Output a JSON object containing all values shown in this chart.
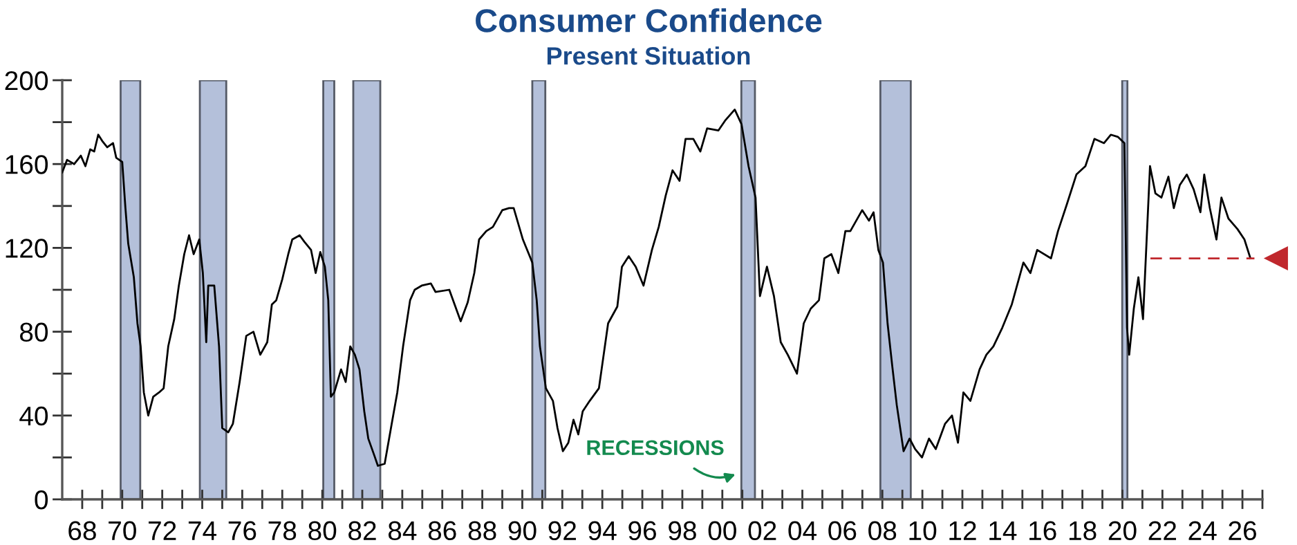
{
  "chart_data": {
    "type": "line",
    "title": "Consumer Confidence",
    "subtitle": "Present Situation",
    "xlim": [
      1967,
      2027
    ],
    "ylim": [
      0,
      200
    ],
    "yticks": [
      0,
      {
        "value": 20,
        "label": null
      },
      40,
      {
        "value": 60,
        "label": null
      },
      80,
      {
        "value": 100,
        "label": null
      },
      120,
      {
        "value": 140,
        "label": null
      },
      160,
      {
        "value": 180,
        "label": null
      },
      200
    ],
    "xticks": [
      {
        "value": 1968,
        "label": "68"
      },
      {
        "value": 1969,
        "label": null
      },
      {
        "value": 1970,
        "label": "70"
      },
      {
        "value": 1971,
        "label": null
      },
      {
        "value": 1972,
        "label": "72"
      },
      {
        "value": 1973,
        "label": null
      },
      {
        "value": 1974,
        "label": "74"
      },
      {
        "value": 1975,
        "label": null
      },
      {
        "value": 1976,
        "label": "76"
      },
      {
        "value": 1977,
        "label": null
      },
      {
        "value": 1978,
        "label": "78"
      },
      {
        "value": 1979,
        "label": null
      },
      {
        "value": 1980,
        "label": "80"
      },
      {
        "value": 1981,
        "label": null
      },
      {
        "value": 1982,
        "label": "82"
      },
      {
        "value": 1983,
        "label": null
      },
      {
        "value": 1984,
        "label": "84"
      },
      {
        "value": 1985,
        "label": null
      },
      {
        "value": 1986,
        "label": "86"
      },
      {
        "value": 1987,
        "label": null
      },
      {
        "value": 1988,
        "label": "88"
      },
      {
        "value": 1989,
        "label": null
      },
      {
        "value": 1990,
        "label": "90"
      },
      {
        "value": 1991,
        "label": null
      },
      {
        "value": 1992,
        "label": "92"
      },
      {
        "value": 1993,
        "label": null
      },
      {
        "value": 1994,
        "label": "94"
      },
      {
        "value": 1995,
        "label": null
      },
      {
        "value": 1996,
        "label": "96"
      },
      {
        "value": 1997,
        "label": null
      },
      {
        "value": 1998,
        "label": "98"
      },
      {
        "value": 1999,
        "label": null
      },
      {
        "value": 2000,
        "label": "00"
      },
      {
        "value": 2001,
        "label": null
      },
      {
        "value": 2002,
        "label": "02"
      },
      {
        "value": 2003,
        "label": null
      },
      {
        "value": 2004,
        "label": "04"
      },
      {
        "value": 2005,
        "label": null
      },
      {
        "value": 2006,
        "label": "06"
      },
      {
        "value": 2007,
        "label": null
      },
      {
        "value": 2008,
        "label": "08"
      },
      {
        "value": 2009,
        "label": null
      },
      {
        "value": 2010,
        "label": "10"
      },
      {
        "value": 2011,
        "label": null
      },
      {
        "value": 2012,
        "label": "12"
      },
      {
        "value": 2013,
        "label": null
      },
      {
        "value": 2014,
        "label": "14"
      },
      {
        "value": 2015,
        "label": null
      },
      {
        "value": 2016,
        "label": "16"
      },
      {
        "value": 2017,
        "label": null
      },
      {
        "value": 2018,
        "label": "18"
      },
      {
        "value": 2019,
        "label": null
      },
      {
        "value": 2020,
        "label": "20"
      },
      {
        "value": 2021,
        "label": null
      },
      {
        "value": 2022,
        "label": "22"
      },
      {
        "value": 2023,
        "label": null
      },
      {
        "value": 2024,
        "label": "24"
      },
      {
        "value": 2025,
        "label": null
      },
      {
        "value": 2026,
        "label": "26"
      },
      {
        "value": 2027,
        "label": null
      }
    ],
    "grid": false,
    "marker": "none",
    "line_style": "solid",
    "series": [
      {
        "color": "#000000",
        "x": [
          1967.0,
          1967.24,
          1967.6,
          1967.93,
          1968.16,
          1968.4,
          1968.6,
          1968.8,
          1969.0,
          1969.25,
          1969.54,
          1969.7,
          1970.0,
          1970.16,
          1970.3,
          1970.58,
          1970.76,
          1970.92,
          1971.08,
          1971.3,
          1971.55,
          1971.84,
          1972.07,
          1972.3,
          1972.6,
          1972.83,
          1973.1,
          1973.34,
          1973.57,
          1973.85,
          1974.03,
          1974.2,
          1974.3,
          1974.6,
          1974.84,
          1975.0,
          1975.3,
          1975.53,
          1975.87,
          1976.2,
          1976.56,
          1976.9,
          1977.25,
          1977.48,
          1977.7,
          1978.0,
          1978.3,
          1978.5,
          1978.87,
          1979.1,
          1979.44,
          1979.67,
          1979.9,
          1980.13,
          1980.3,
          1980.43,
          1980.6,
          1980.94,
          1981.17,
          1981.4,
          1981.63,
          1981.86,
          1982.1,
          1982.3,
          1982.6,
          1982.78,
          1983.12,
          1983.47,
          1983.75,
          1984.04,
          1984.39,
          1984.62,
          1984.97,
          1985.43,
          1985.66,
          1986.35,
          1986.92,
          1987.27,
          1987.6,
          1987.84,
          1988.2,
          1988.53,
          1989.0,
          1989.34,
          1989.57,
          1990.03,
          1990.5,
          1990.72,
          1990.88,
          1991.18,
          1991.53,
          1991.76,
          1992.03,
          1992.3,
          1992.56,
          1992.8,
          1993.02,
          1993.37,
          1993.83,
          1994.29,
          1994.75,
          1994.98,
          1995.32,
          1995.67,
          1996.06,
          1996.48,
          1996.82,
          1997.17,
          1997.51,
          1997.86,
          1998.16,
          1998.55,
          1998.9,
          1999.24,
          1999.8,
          2000.16,
          2000.62,
          2000.96,
          2001.31,
          2001.66,
          2001.88,
          2002.23,
          2002.58,
          2002.92,
          2003.27,
          2003.73,
          2004.07,
          2004.42,
          2004.83,
          2005.1,
          2005.45,
          2005.8,
          2006.15,
          2006.4,
          2006.99,
          2007.33,
          2007.56,
          2007.8,
          2008.03,
          2008.26,
          2008.49,
          2008.72,
          2009.06,
          2009.36,
          2009.64,
          2009.98,
          2010.33,
          2010.67,
          2011.13,
          2011.48,
          2011.78,
          2012.05,
          2012.4,
          2012.86,
          2013.2,
          2013.55,
          2014.0,
          2014.47,
          2015.05,
          2015.4,
          2015.74,
          2016.43,
          2016.78,
          2017.23,
          2017.7,
          2018.15,
          2018.6,
          2019.08,
          2019.42,
          2019.77,
          2020.1,
          2020.23,
          2020.34,
          2020.57,
          2020.8,
          2021.03,
          2021.38,
          2021.65,
          2021.95,
          2022.3,
          2022.57,
          2022.87,
          2023.22,
          2023.56,
          2023.9,
          2024.09,
          2024.37,
          2024.7,
          2024.95,
          2025.3,
          2025.75,
          2026.1,
          2026.4
        ],
        "values": [
          156,
          162,
          160,
          164,
          159,
          167,
          166,
          174,
          171,
          168,
          170,
          163,
          161,
          139,
          122,
          106,
          84,
          73,
          51,
          40,
          49,
          51,
          53,
          73,
          86,
          102,
          117,
          126,
          117,
          124,
          108,
          75,
          102,
          102,
          73,
          34,
          32,
          36,
          56,
          78,
          80,
          69,
          75,
          93,
          95,
          105,
          117,
          124,
          126,
          123,
          119,
          108,
          118,
          111,
          95,
          49,
          51,
          62,
          56,
          73,
          69,
          62,
          42,
          29,
          21,
          16,
          17,
          36,
          51,
          73,
          95,
          100,
          102,
          103,
          99,
          100,
          85,
          94,
          108,
          124,
          128,
          130,
          138,
          139,
          139,
          124,
          113,
          95,
          73,
          53,
          47,
          34,
          23,
          27,
          38,
          31,
          42,
          47,
          53,
          84,
          92,
          111,
          116,
          111,
          102,
          119,
          130,
          145,
          157,
          152,
          172,
          172,
          166,
          177,
          176,
          181,
          186,
          179,
          159,
          144,
          97,
          111,
          97,
          75,
          69,
          60,
          84,
          91,
          95,
          115,
          117,
          108,
          128,
          128,
          138,
          133,
          137,
          119,
          113,
          84,
          64,
          45,
          23,
          29,
          24,
          20,
          29,
          24,
          36,
          40,
          27,
          51,
          47,
          62,
          69,
          73,
          82,
          93,
          113,
          108,
          119,
          115,
          128,
          141,
          155,
          159,
          172,
          170,
          174,
          173,
          170,
          82,
          69,
          91,
          106,
          86,
          159,
          146,
          144,
          154,
          139,
          150,
          155,
          148,
          137,
          155,
          139,
          124,
          144,
          134,
          129,
          124,
          115
        ]
      },
      {
        "type": "line",
        "color": "#c0282d",
        "line_style": "dashed",
        "x": [
          2021.4,
          2026.6
        ],
        "values": [
          115,
          115
        ]
      }
    ],
    "bands": [
      {
        "axis": "x",
        "from": 1969.92,
        "to": 1970.9,
        "color": "#b4c0da"
      },
      {
        "axis": "x",
        "from": 1973.88,
        "to": 1975.2,
        "color": "#b4c0da"
      },
      {
        "axis": "x",
        "from": 1980.05,
        "to": 1980.6,
        "color": "#b4c0da"
      },
      {
        "axis": "x",
        "from": 1981.55,
        "to": 1982.9,
        "color": "#b4c0da"
      },
      {
        "axis": "x",
        "from": 1990.5,
        "to": 1991.15,
        "color": "#b4c0da"
      },
      {
        "axis": "x",
        "from": 2000.95,
        "to": 2001.63,
        "color": "#b4c0da"
      },
      {
        "axis": "x",
        "from": 2007.9,
        "to": 2009.42,
        "color": "#b4c0da"
      },
      {
        "axis": "x",
        "from": 2019.99,
        "to": 2020.25,
        "color": "#b4c0da"
      }
    ],
    "annotations": [
      "RECESSIONS"
    ]
  }
}
